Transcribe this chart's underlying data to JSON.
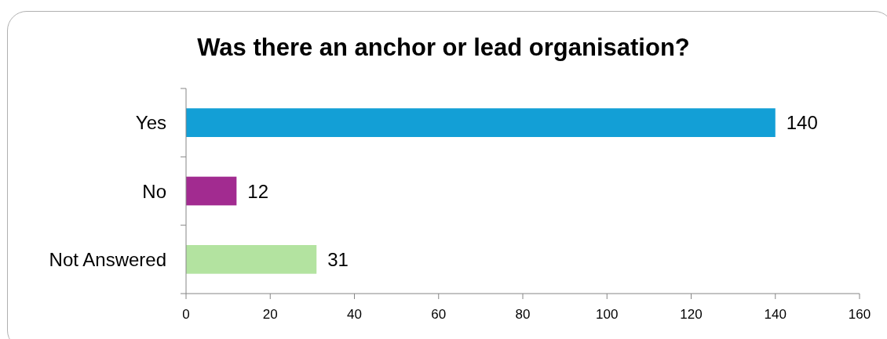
{
  "chart_data": {
    "type": "bar",
    "orientation": "horizontal",
    "title": "Was there an anchor or lead organisation?",
    "categories": [
      "Yes",
      "No",
      "Not Answered"
    ],
    "values": [
      140,
      12,
      31
    ],
    "colors": [
      "#139fd6",
      "#a22b90",
      "#b3e3a0"
    ],
    "xlim": [
      0,
      160
    ],
    "xticks": [
      0,
      20,
      40,
      60,
      80,
      100,
      120,
      140,
      160
    ],
    "data_labels": true,
    "grid": false
  }
}
